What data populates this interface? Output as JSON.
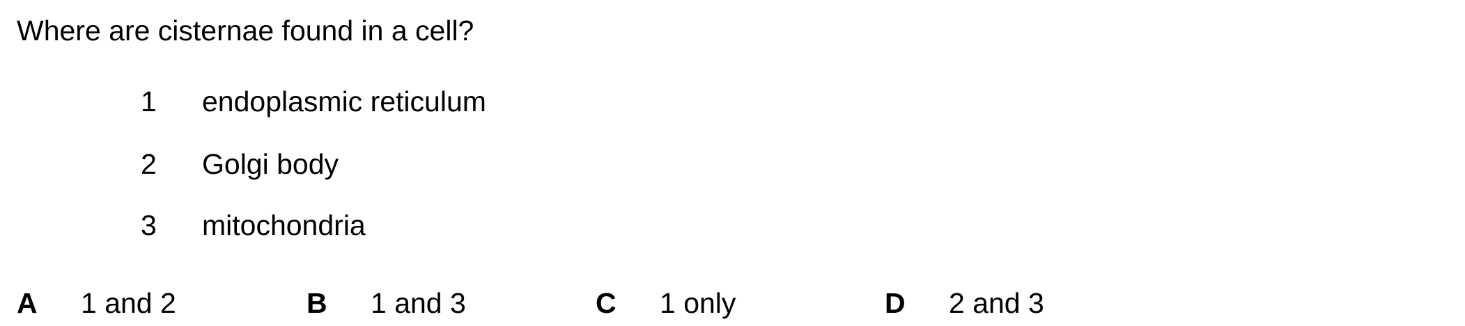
{
  "question": "Where are cisternae found in a cell?",
  "statements": [
    {
      "number": "1",
      "text": "endoplasmic reticulum"
    },
    {
      "number": "2",
      "text": "Golgi body"
    },
    {
      "number": "3",
      "text": "mitochondria"
    }
  ],
  "options": [
    {
      "letter": "A",
      "text": "1 and 2"
    },
    {
      "letter": "B",
      "text": "1 and 3"
    },
    {
      "letter": "C",
      "text": "1 only"
    },
    {
      "letter": "D",
      "text": "2 and 3"
    }
  ]
}
